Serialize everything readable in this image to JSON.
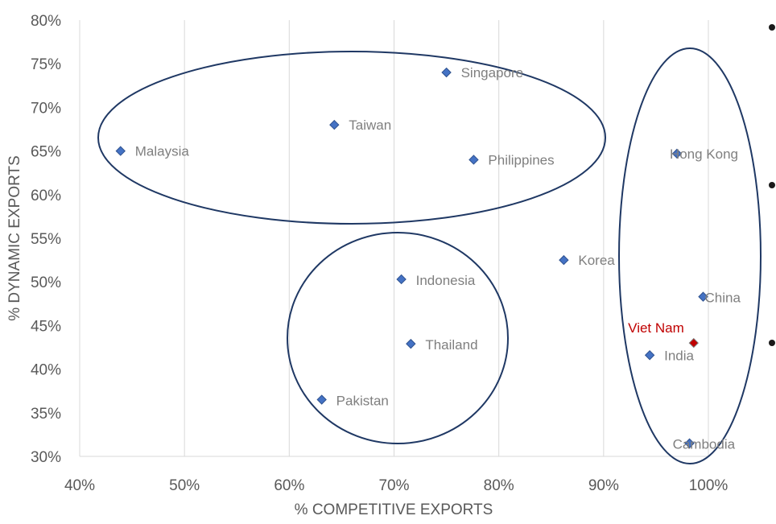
{
  "chart_data": {
    "type": "scatter",
    "xlabel": "% COMPETITIVE EXPORTS",
    "ylabel": "% DYNAMIC EXPORTS",
    "xlim": [
      40,
      100
    ],
    "ylim": [
      30,
      80
    ],
    "x_ticks": [
      "40%",
      "50%",
      "60%",
      "70%",
      "80%",
      "90%",
      "100%"
    ],
    "y_ticks": [
      "30%",
      "35%",
      "40%",
      "45%",
      "50%",
      "55%",
      "60%",
      "65%",
      "70%",
      "75%",
      "80%"
    ],
    "grid": "vertical",
    "marker_color": "#4472c4",
    "highlight_color": "#c00000",
    "cluster_color": "#1f3864",
    "points": [
      {
        "name": "Malaysia",
        "x": 43.9,
        "y": 65.0
      },
      {
        "name": "Taiwan",
        "x": 64.3,
        "y": 68.0
      },
      {
        "name": "Singapore",
        "x": 75.0,
        "y": 74.0
      },
      {
        "name": "Philippines",
        "x": 77.6,
        "y": 64.0
      },
      {
        "name": "Hong Kong",
        "x": 97.0,
        "y": 64.7
      },
      {
        "name": "Korea",
        "x": 86.2,
        "y": 52.5
      },
      {
        "name": "Indonesia",
        "x": 70.7,
        "y": 50.3
      },
      {
        "name": "China",
        "x": 99.5,
        "y": 48.3
      },
      {
        "name": "Thailand",
        "x": 71.6,
        "y": 42.9
      },
      {
        "name": "Viet Nam",
        "x": 98.6,
        "y": 43.0,
        "highlight": true
      },
      {
        "name": "India",
        "x": 94.4,
        "y": 41.6
      },
      {
        "name": "Pakistan",
        "x": 63.1,
        "y": 36.5
      },
      {
        "name": "Cambodia",
        "x": 98.2,
        "y": 31.5
      }
    ]
  }
}
